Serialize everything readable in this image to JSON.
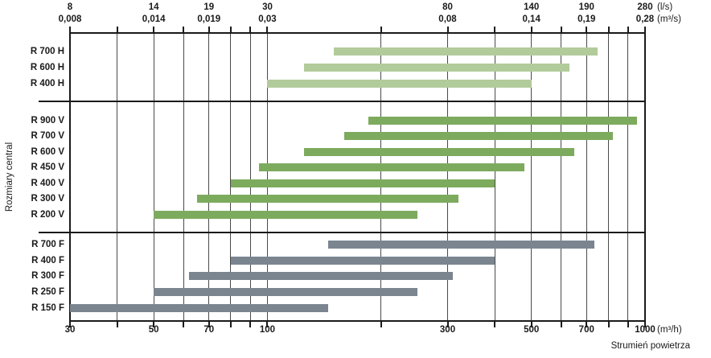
{
  "chart_data": {
    "type": "bar",
    "variant": "horizontal-range-bars",
    "title": "",
    "xlabel": "Strumień powietrza",
    "ylabel": "Rozmiary central",
    "x_scale": "log",
    "x_unit": "m³/h",
    "xlim": [
      30,
      1000
    ],
    "gridline_values": [
      30,
      40,
      50,
      60,
      70,
      80,
      90,
      100,
      200,
      300,
      400,
      500,
      600,
      700,
      800,
      900,
      1000
    ],
    "legend": "none",
    "x_axis_top": {
      "unit_ls": "(l/s)",
      "unit_m3s": "(m³/s)",
      "ticks": [
        {
          "at": 30,
          "ls": "8",
          "m3s": "0,008"
        },
        {
          "at": 50,
          "ls": "14",
          "m3s": "0,014"
        },
        {
          "at": 70,
          "ls": "19",
          "m3s": "0,019"
        },
        {
          "at": 100,
          "ls": "30",
          "m3s": "0,03"
        },
        {
          "at": 300,
          "ls": "80",
          "m3s": "0,08"
        },
        {
          "at": 500,
          "ls": "140",
          "m3s": "0,14"
        },
        {
          "at": 700,
          "ls": "190",
          "m3s": "0,19"
        },
        {
          "at": 1000,
          "ls": "280",
          "m3s": "0,28"
        }
      ]
    },
    "x_axis_bottom": {
      "unit": "(m³/h)",
      "ticks": [
        {
          "at": 30,
          "label": "30"
        },
        {
          "at": 50,
          "label": "50"
        },
        {
          "at": 70,
          "label": "70"
        },
        {
          "at": 100,
          "label": "100"
        },
        {
          "at": 300,
          "label": "300"
        },
        {
          "at": 500,
          "label": "500"
        },
        {
          "at": 700,
          "label": "700"
        },
        {
          "at": 1000,
          "label": "1000"
        }
      ]
    },
    "groups": [
      {
        "name": "H",
        "color": "#b2cb9b",
        "rows": [
          {
            "label": "R 700 H",
            "from": 150,
            "to": 750
          },
          {
            "label": "R 600 H",
            "from": 125,
            "to": 630
          },
          {
            "label": "R 400 H",
            "from": 100,
            "to": 500
          }
        ]
      },
      {
        "name": "V",
        "color": "#7dab5e",
        "rows": [
          {
            "label": "R 900 V",
            "from": 185,
            "to": 950
          },
          {
            "label": "R 700 V",
            "from": 160,
            "to": 820
          },
          {
            "label": "R 600 V",
            "from": 125,
            "to": 650
          },
          {
            "label": "R 450 V",
            "from": 95,
            "to": 480
          },
          {
            "label": "R 400 V",
            "from": 80,
            "to": 400
          },
          {
            "label": "R 300 V",
            "from": 65,
            "to": 320
          },
          {
            "label": "R 200 V",
            "from": 50,
            "to": 250
          }
        ]
      },
      {
        "name": "F",
        "color": "#7a8590",
        "rows": [
          {
            "label": "R 700 F",
            "from": 145,
            "to": 735
          },
          {
            "label": "R 400 F",
            "from": 80,
            "to": 400
          },
          {
            "label": "R 300 F",
            "from": 62,
            "to": 310
          },
          {
            "label": "R 250 F",
            "from": 50,
            "to": 250
          },
          {
            "label": "R 150 F",
            "from": 30,
            "to": 145
          }
        ]
      }
    ],
    "colors": {
      "group_h": "#b2cb9b",
      "group_v": "#7dab5e",
      "group_f": "#7a8590",
      "grid": "#4a4a4a",
      "frame": "#1a1a1a",
      "text": "#1a1a1a",
      "background": "#ffffff"
    }
  }
}
